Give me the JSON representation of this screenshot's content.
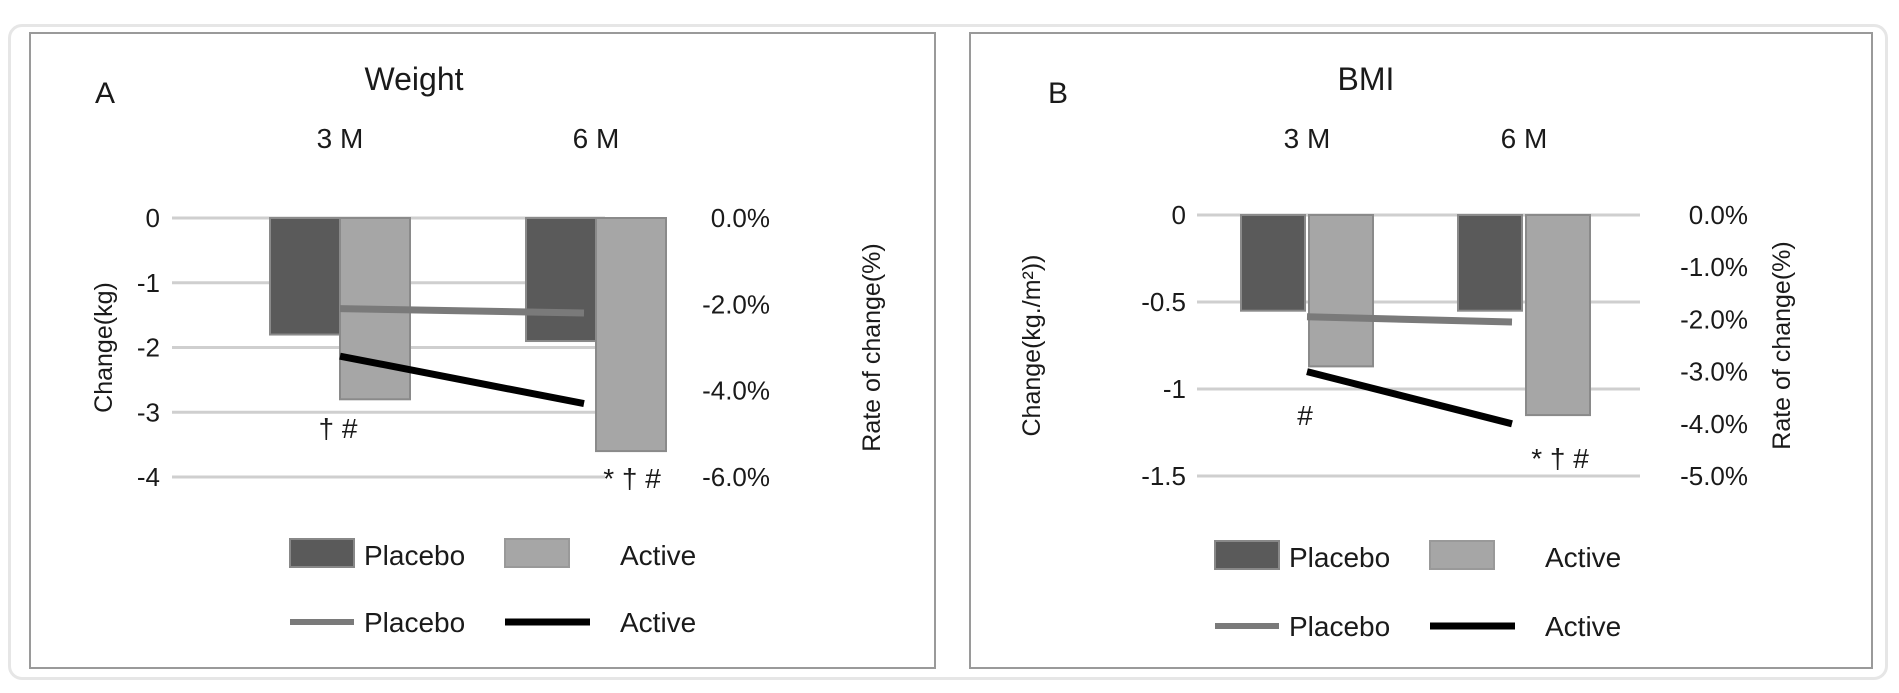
{
  "chart_data": [
    {
      "type": "bar",
      "panel_label": "A",
      "title": "Weight",
      "categories": [
        "3 M",
        "6 M"
      ],
      "ylabel": "Change(kg)",
      "y2label": "Rate of change(%)",
      "ylim": [
        -4,
        0
      ],
      "yticks": [
        "0",
        "-1",
        "-2",
        "-3",
        "-4"
      ],
      "y2lim": [
        -6,
        0
      ],
      "y2ticks": [
        "0.0%",
        "-2.0%",
        "-4.0%",
        "-6.0%"
      ],
      "grid": true,
      "legend_position": "bottom",
      "series": [
        {
          "name": "Placebo",
          "kind": "bar",
          "color": "#5a5a5a",
          "values": [
            -1.8,
            -1.9
          ]
        },
        {
          "name": "Active",
          "kind": "bar",
          "color": "#a6a6a6",
          "values": [
            -2.8,
            -3.6
          ]
        },
        {
          "name": "Placebo",
          "kind": "line",
          "axis": "secondary",
          "color": "#7a7a7a",
          "values": [
            -2.1,
            -2.2
          ]
        },
        {
          "name": "Active",
          "kind": "line",
          "axis": "secondary",
          "color": "#000000",
          "values": [
            -3.2,
            -4.3
          ]
        }
      ],
      "annotations": [
        {
          "category": "3 M",
          "text": "† #"
        },
        {
          "category": "6 M",
          "text": "* † #"
        }
      ]
    },
    {
      "type": "bar",
      "panel_label": "B",
      "title": "BMI",
      "categories": [
        "3 M",
        "6 M"
      ],
      "ylabel": "Change(kg./m²))",
      "y2label": "Rate of change(%)",
      "ylim": [
        -1.5,
        0
      ],
      "yticks": [
        "0",
        "-0.5",
        "-1",
        "-1.5"
      ],
      "y2lim": [
        -5,
        0
      ],
      "y2ticks": [
        "0.0%",
        "-1.0%",
        "-2.0%",
        "-3.0%",
        "-4.0%",
        "-5.0%"
      ],
      "grid": true,
      "legend_position": "bottom",
      "series": [
        {
          "name": "Placebo",
          "kind": "bar",
          "color": "#5a5a5a",
          "values": [
            -0.55,
            -0.55
          ]
        },
        {
          "name": "Active",
          "kind": "bar",
          "color": "#a6a6a6",
          "values": [
            -0.87,
            -1.15
          ]
        },
        {
          "name": "Placebo",
          "kind": "line",
          "axis": "secondary",
          "color": "#7a7a7a",
          "values": [
            -1.95,
            -2.05
          ]
        },
        {
          "name": "Active",
          "kind": "line",
          "axis": "secondary",
          "color": "#000000",
          "values": [
            -3.0,
            -4.0
          ]
        }
      ],
      "annotations": [
        {
          "category": "3 M",
          "text": "#"
        },
        {
          "category": "6 M",
          "text": "* † #"
        }
      ]
    }
  ]
}
